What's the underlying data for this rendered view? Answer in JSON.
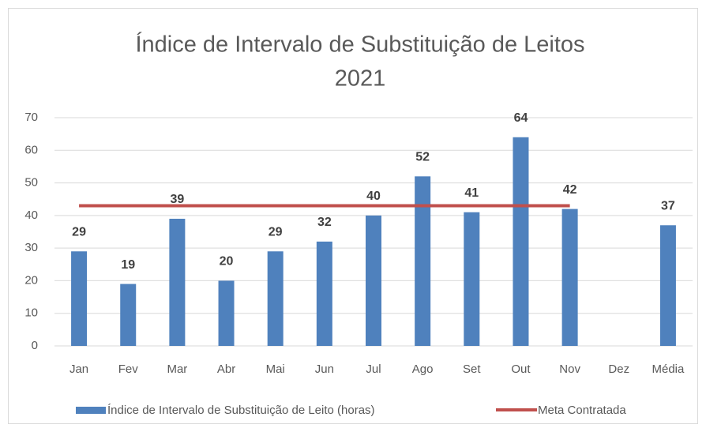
{
  "chart_data": {
    "type": "bar",
    "title": [
      "Índice de Intervalo de Substituição de Leitos",
      "2021"
    ],
    "categories": [
      "Jan",
      "Fev",
      "Mar",
      "Abr",
      "Mai",
      "Jun",
      "Jul",
      "Ago",
      "Set",
      "Out",
      "Nov",
      "Dez",
      "Média"
    ],
    "series": [
      {
        "name": "Índice de Intervalo de Substituição de Leito (horas)",
        "type": "bar",
        "color": "#4f81bd",
        "values": [
          29,
          19,
          39,
          20,
          29,
          32,
          40,
          52,
          41,
          64,
          42,
          null,
          37
        ]
      },
      {
        "name": "Meta Contratada",
        "type": "line",
        "color": "#c0504d",
        "values": [
          43,
          43,
          43,
          43,
          43,
          43,
          43,
          43,
          43,
          43,
          43,
          null,
          null
        ]
      }
    ],
    "ylim": [
      0,
      70
    ],
    "yticks": [
      0,
      10,
      20,
      30,
      40,
      50,
      60,
      70
    ],
    "grid": true,
    "legend": "bottom"
  }
}
